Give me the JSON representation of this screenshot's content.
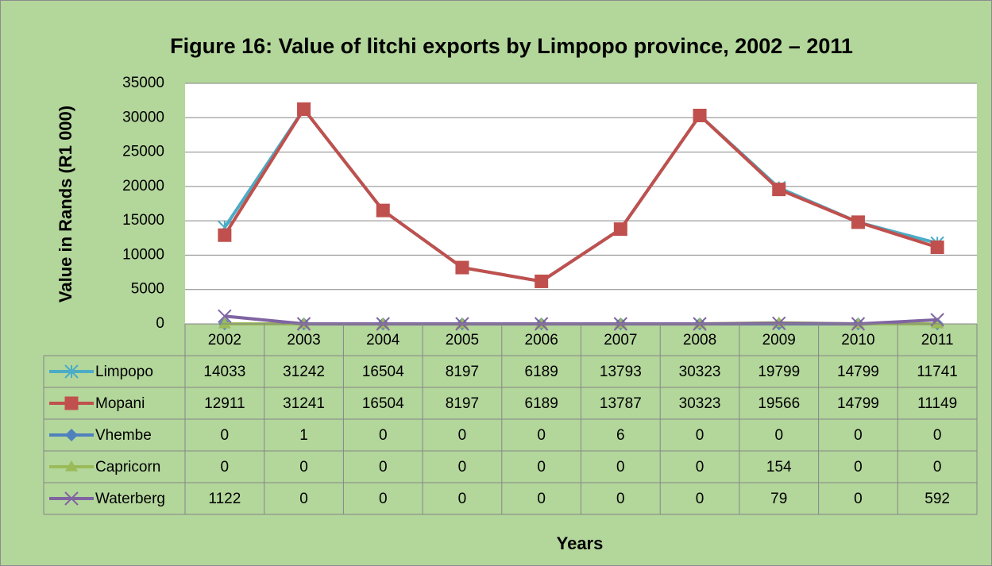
{
  "chart_data": {
    "type": "line",
    "title": "Figure 16: Value of litchi exports by Limpopo province, 2002 – 2011",
    "y_label": "Value in Rands (R1 000)",
    "x_label": "Years",
    "categories": [
      "2002",
      "2003",
      "2004",
      "2005",
      "2006",
      "2007",
      "2008",
      "2009",
      "2010",
      "2011"
    ],
    "ylim": [
      0,
      35000
    ],
    "yticks": [
      0,
      5000,
      10000,
      15000,
      20000,
      25000,
      30000,
      35000
    ],
    "grid": true,
    "data_table": true,
    "series": [
      {
        "name": "Limpopo",
        "color": "#4bacc6",
        "marker": "star",
        "values": [
          14033,
          31242,
          16504,
          8197,
          6189,
          13793,
          30323,
          19799,
          14799,
          11741
        ]
      },
      {
        "name": "Mopani",
        "color": "#c0504d",
        "marker": "square",
        "values": [
          12911,
          31241,
          16504,
          8197,
          6189,
          13787,
          30323,
          19566,
          14799,
          11149
        ]
      },
      {
        "name": "Vhembe",
        "color": "#4f81bd",
        "marker": "diamond",
        "values": [
          0,
          1,
          0,
          0,
          0,
          6,
          0,
          0,
          0,
          0
        ]
      },
      {
        "name": "Capricorn",
        "color": "#9bbb59",
        "marker": "triangle",
        "values": [
          0,
          0,
          0,
          0,
          0,
          0,
          0,
          154,
          0,
          0
        ]
      },
      {
        "name": "Waterberg",
        "color": "#8064a2",
        "marker": "x",
        "values": [
          1122,
          0,
          0,
          0,
          0,
          0,
          0,
          79,
          0,
          592
        ]
      }
    ]
  }
}
